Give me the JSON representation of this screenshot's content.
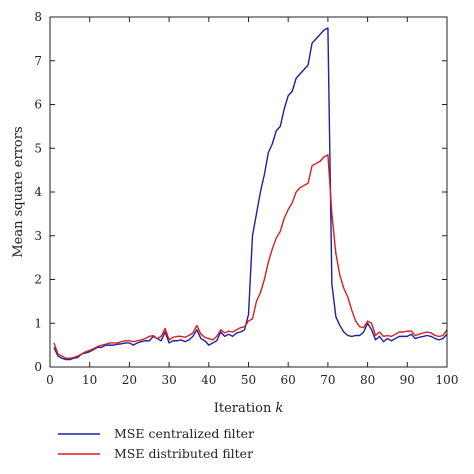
{
  "chart_data": {
    "type": "line",
    "xlabel": "Iteration",
    "xlabel_var": "k",
    "ylabel": "Mean square errors",
    "xlim": [
      0,
      100
    ],
    "ylim": [
      0,
      8
    ],
    "xticks": [
      0,
      10,
      20,
      30,
      40,
      50,
      60,
      70,
      80,
      90,
      100
    ],
    "yticks": [
      0,
      1,
      2,
      3,
      4,
      5,
      6,
      7,
      8
    ],
    "grid": false,
    "legend_position": "below-plot-left",
    "x": [
      1,
      2,
      3,
      4,
      5,
      6,
      7,
      8,
      9,
      10,
      11,
      12,
      13,
      14,
      15,
      16,
      17,
      18,
      19,
      20,
      21,
      22,
      23,
      24,
      25,
      26,
      27,
      28,
      29,
      30,
      31,
      32,
      33,
      34,
      35,
      36,
      37,
      38,
      39,
      40,
      41,
      42,
      43,
      44,
      45,
      46,
      47,
      48,
      49,
      50,
      51,
      52,
      53,
      54,
      55,
      56,
      57,
      58,
      59,
      60,
      61,
      62,
      63,
      64,
      65,
      66,
      67,
      68,
      69,
      70,
      71,
      72,
      73,
      74,
      75,
      76,
      77,
      78,
      79,
      80,
      81,
      82,
      83,
      84,
      85,
      86,
      87,
      88,
      89,
      90,
      91,
      92,
      93,
      94,
      95,
      96,
      97,
      98,
      99,
      100
    ],
    "series": [
      {
        "name": "MSE centralized filter",
        "color": "#1f1fa0",
        "values": [
          0.45,
          0.25,
          0.2,
          0.17,
          0.17,
          0.2,
          0.22,
          0.3,
          0.32,
          0.35,
          0.4,
          0.45,
          0.45,
          0.5,
          0.5,
          0.5,
          0.52,
          0.53,
          0.55,
          0.55,
          0.5,
          0.55,
          0.58,
          0.6,
          0.6,
          0.7,
          0.65,
          0.6,
          0.8,
          0.55,
          0.6,
          0.6,
          0.62,
          0.58,
          0.62,
          0.7,
          0.85,
          0.65,
          0.6,
          0.5,
          0.55,
          0.6,
          0.8,
          0.7,
          0.75,
          0.7,
          0.78,
          0.8,
          0.85,
          1.2,
          3.0,
          3.5,
          4.0,
          4.4,
          4.9,
          5.1,
          5.4,
          5.5,
          5.9,
          6.2,
          6.3,
          6.6,
          6.7,
          6.8,
          6.9,
          7.4,
          7.5,
          7.6,
          7.7,
          7.75,
          1.9,
          1.15,
          0.95,
          0.8,
          0.72,
          0.7,
          0.72,
          0.72,
          0.8,
          1.0,
          0.85,
          0.62,
          0.7,
          0.58,
          0.65,
          0.6,
          0.65,
          0.7,
          0.7,
          0.7,
          0.75,
          0.65,
          0.68,
          0.7,
          0.72,
          0.7,
          0.65,
          0.62,
          0.65,
          0.75
        ]
      },
      {
        "name": "MSE distributed filter",
        "color": "#d62020",
        "values": [
          0.55,
          0.3,
          0.25,
          0.2,
          0.2,
          0.22,
          0.25,
          0.3,
          0.35,
          0.38,
          0.42,
          0.47,
          0.5,
          0.52,
          0.55,
          0.55,
          0.55,
          0.58,
          0.6,
          0.6,
          0.58,
          0.6,
          0.62,
          0.65,
          0.7,
          0.72,
          0.65,
          0.7,
          0.88,
          0.62,
          0.68,
          0.7,
          0.7,
          0.68,
          0.72,
          0.78,
          0.95,
          0.75,
          0.68,
          0.65,
          0.62,
          0.7,
          0.85,
          0.78,
          0.82,
          0.8,
          0.85,
          0.9,
          0.92,
          1.05,
          1.1,
          1.5,
          1.7,
          2.0,
          2.4,
          2.7,
          2.95,
          3.1,
          3.4,
          3.6,
          3.75,
          4.0,
          4.1,
          4.15,
          4.2,
          4.6,
          4.65,
          4.7,
          4.8,
          4.85,
          3.5,
          2.6,
          2.1,
          1.8,
          1.6,
          1.3,
          1.05,
          0.92,
          0.9,
          1.05,
          1.0,
          0.72,
          0.8,
          0.7,
          0.72,
          0.7,
          0.75,
          0.8,
          0.8,
          0.82,
          0.82,
          0.72,
          0.75,
          0.78,
          0.8,
          0.78,
          0.72,
          0.7,
          0.72,
          0.85
        ]
      }
    ]
  }
}
